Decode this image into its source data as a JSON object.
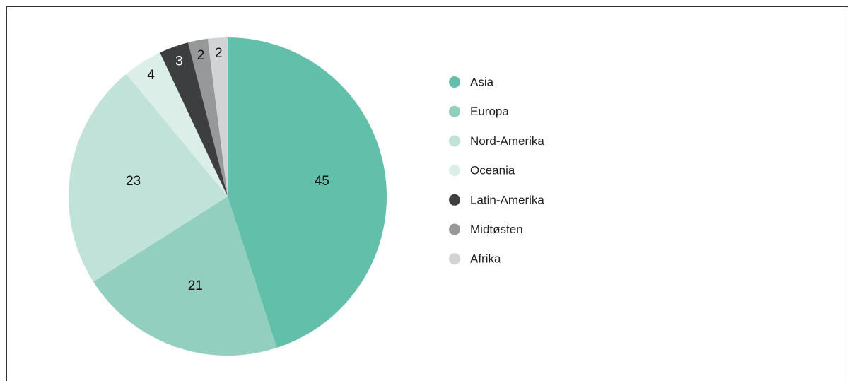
{
  "chart_data": {
    "type": "pie",
    "categories": [
      "Asia",
      "Europa",
      "Nord-Amerika",
      "Oceania",
      "Latin-Amerika",
      "Midtøsten",
      "Afrika"
    ],
    "values": [
      45,
      21,
      23,
      4,
      3,
      2,
      2
    ],
    "colors": [
      "#62bfaa",
      "#92cfbf",
      "#c0e2d8",
      "#dbeee8",
      "#3d3e40",
      "#97989a",
      "#d2d3d5"
    ],
    "legend": "right"
  }
}
